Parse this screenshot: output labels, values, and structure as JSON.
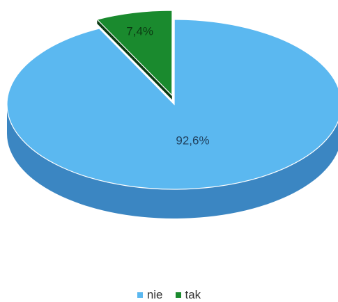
{
  "chart_data": {
    "type": "pie",
    "series": [
      {
        "name": "nie",
        "value": 92.6,
        "label": "92,6%",
        "color": "#5bb8f0",
        "side_color": "#3b86c2"
      },
      {
        "name": "tak",
        "value": 7.4,
        "label": "7,4%",
        "color": "#1a8a2e",
        "side_color": "#0f5a1c"
      }
    ],
    "legend_placement": "bottom",
    "three_d": true,
    "exploded_slice": "tak"
  }
}
